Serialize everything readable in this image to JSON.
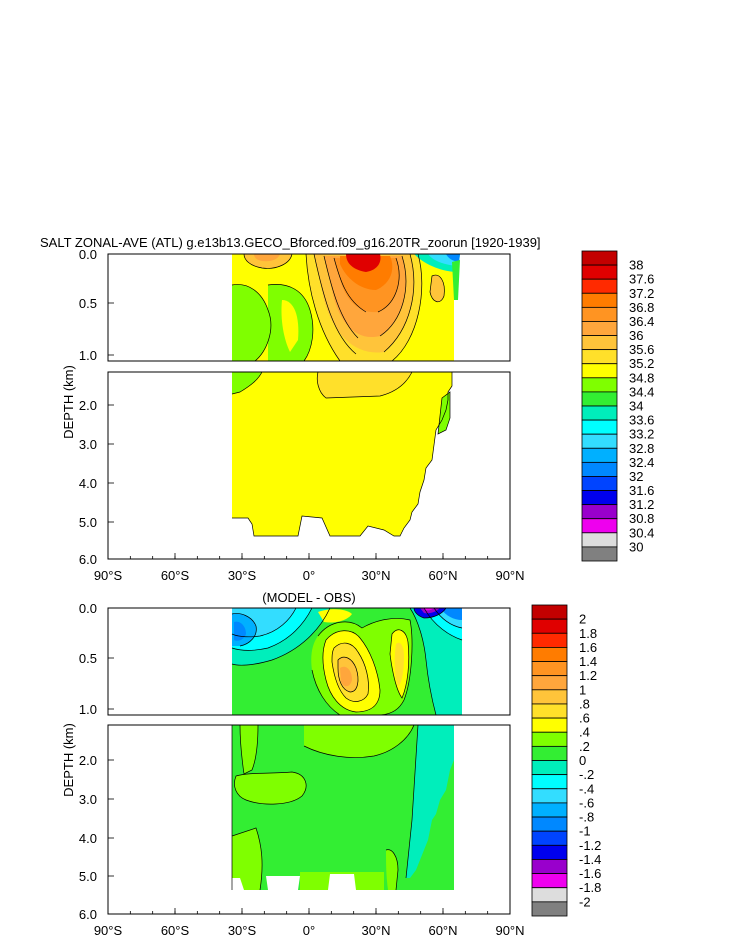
{
  "chart_data": [
    {
      "type": "heatmap",
      "title": "SALT ZONAL-AVE (ATL) g.e13b13.GECO_Bforced.f09_g16.20TR_zoorun [1920-1939]",
      "ylabel": "DEPTH (km)",
      "xlim": [
        -90,
        90
      ],
      "x_ticks": [
        "90°S",
        "60°S",
        "30°S",
        "0°",
        "30°N",
        "60°N",
        "90°N"
      ],
      "y_ticks_upper": [
        "0.0",
        "0.5",
        "1.0"
      ],
      "y_ticks_lower": [
        "2.0",
        "3.0",
        "4.0",
        "5.0",
        "6.0"
      ],
      "colorbar_labels": [
        "38",
        "37.6",
        "37.2",
        "36.8",
        "36.4",
        "36",
        "35.6",
        "35.2",
        "34.8",
        "34.4",
        "34",
        "33.6",
        "33.2",
        "32.8",
        "32.4",
        "32",
        "31.6",
        "31.2",
        "30.8",
        "30.4",
        "30"
      ],
      "colors": [
        "#c30000",
        "#e00000",
        "#ff2a00",
        "#ff7c00",
        "#ff9422",
        "#ffa63c",
        "#ffc43a",
        "#ffe02a",
        "#ffff00",
        "#7fff00",
        "#33ee33",
        "#00eebb",
        "#00ffff",
        "#33ddff",
        "#00b0ff",
        "#0088ff",
        "#0044ff",
        "#0000ee",
        "#9900cc",
        "#ee00ee",
        "#dddddd",
        "#808080"
      ]
    },
    {
      "type": "heatmap",
      "title": "(MODEL - OBS)",
      "ylabel": "DEPTH (km)",
      "xlim": [
        -90,
        90
      ],
      "x_ticks": [
        "90°S",
        "60°S",
        "30°S",
        "0°",
        "30°N",
        "60°N",
        "90°N"
      ],
      "y_ticks_upper": [
        "0.0",
        "0.5",
        "1.0"
      ],
      "y_ticks_lower": [
        "2.0",
        "3.0",
        "4.0",
        "5.0",
        "6.0"
      ],
      "colorbar_labels": [
        "2",
        "1.8",
        "1.6",
        "1.4",
        "1.2",
        "1",
        ".8",
        ".6",
        ".4",
        ".2",
        "0",
        "-.2",
        "-.4",
        "-.6",
        "-.8",
        "-1",
        "-1.2",
        "-1.4",
        "-1.6",
        "-1.8",
        "-2"
      ],
      "colors": [
        "#c30000",
        "#e00000",
        "#ff2a00",
        "#ff7c00",
        "#ff9422",
        "#ffa63c",
        "#ffc43a",
        "#ffe02a",
        "#ffff00",
        "#7fff00",
        "#33ee33",
        "#00eebb",
        "#00ffff",
        "#33ddff",
        "#00b0ff",
        "#0088ff",
        "#0044ff",
        "#0000ee",
        "#9900cc",
        "#ee00ee",
        "#dddddd",
        "#808080"
      ]
    }
  ]
}
